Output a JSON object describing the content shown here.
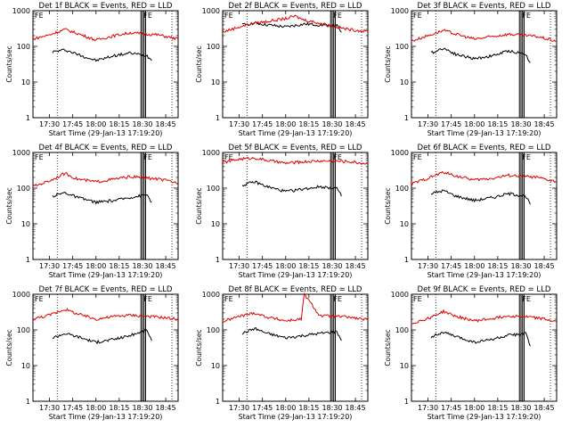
{
  "panels": [
    {
      "title": "Det 1f BLACK = Events, RED = LLD",
      "xlabel": "Start Time (29-Jan-13 17:19:20)",
      "ylabel": "Counts/sec",
      "xticks": [
        "17:30",
        "17:45",
        "18:00",
        "18:15",
        "18:30",
        "18:45"
      ],
      "yticks": [
        "1",
        "10",
        "100",
        "1000"
      ],
      "flag": "FE"
    },
    {
      "title": "Det 2f BLACK = Events, RED = LLD",
      "xlabel": "Start Time (29-Jan-13 17:19:20)",
      "ylabel": "Counts/sec",
      "xticks": [
        "17:30",
        "17:45",
        "18:00",
        "18:15",
        "18:30",
        "18:45"
      ],
      "yticks": [
        "1",
        "10",
        "100",
        "1000"
      ],
      "flag": "FE"
    },
    {
      "title": "Det 3f BLACK = Events, RED = LLD",
      "xlabel": "Start Time (29-Jan-13 17:19:20)",
      "ylabel": "Counts/sec",
      "xticks": [
        "17:30",
        "17:45",
        "18:00",
        "18:15",
        "18:30",
        "18:45"
      ],
      "yticks": [
        "1",
        "10",
        "100",
        "1000"
      ],
      "flag": "FE"
    },
    {
      "title": "Det 4f BLACK = Events, RED = LLD",
      "xlabel": "Start Time (29-Jan-13 17:19:20)",
      "ylabel": "Counts/sec",
      "xticks": [
        "17:30",
        "17:45",
        "18:00",
        "18:15",
        "18:30",
        "18:45"
      ],
      "yticks": [
        "1",
        "10",
        "100",
        "1000"
      ],
      "flag": "FE"
    },
    {
      "title": "Det 5f BLACK = Events, RED = LLD",
      "xlabel": "Start Time (29-Jan-13 17:19:20)",
      "ylabel": "Counts/sec",
      "xticks": [
        "17:30",
        "17:45",
        "18:00",
        "18:15",
        "18:30",
        "18:45"
      ],
      "yticks": [
        "1",
        "10",
        "100",
        "1000"
      ],
      "flag": "FE"
    },
    {
      "title": "Det 6f BLACK = Events, RED = LLD",
      "xlabel": "Start Time (29-Jan-13 17:19:20)",
      "ylabel": "Counts/sec",
      "xticks": [
        "17:30",
        "17:45",
        "18:00",
        "18:15",
        "18:30",
        "18:45"
      ],
      "yticks": [
        "1",
        "10",
        "100",
        "1000"
      ],
      "flag": "FE"
    },
    {
      "title": "Det 7f BLACK = Events, RED = LLD",
      "xlabel": "Start Time (29-Jan-13 17:19:20)",
      "ylabel": "Counts/sec",
      "xticks": [
        "17:30",
        "17:45",
        "18:00",
        "18:15",
        "18:30",
        "18:45"
      ],
      "yticks": [
        "1",
        "10",
        "100",
        "1000"
      ],
      "flag": "FE"
    },
    {
      "title": "Det 8f BLACK = Events, RED = LLD",
      "xlabel": "Start Time (29-Jan-13 17:19:20)",
      "ylabel": "Counts/sec",
      "xticks": [
        "17:30",
        "17:45",
        "18:00",
        "18:15",
        "18:30",
        "18:45"
      ],
      "yticks": [
        "1",
        "10",
        "100",
        "1000"
      ],
      "flag": "FE"
    },
    {
      "title": "Det 9f BLACK = Events, RED = LLD",
      "xlabel": "Start Time (29-Jan-13 17:19:20)",
      "ylabel": "Counts/sec",
      "xticks": [
        "17:30",
        "17:45",
        "18:00",
        "18:15",
        "18:30",
        "18:45"
      ],
      "yticks": [
        "1",
        "10",
        "100",
        "1000"
      ],
      "flag": "FE"
    }
  ],
  "colors": {
    "events": "#000000",
    "lld": "#dd0000",
    "axes": "#000000"
  },
  "chart_data": [
    {
      "type": "line",
      "title": "Det 1f BLACK = Events, RED = LLD",
      "xlabel": "Start Time (29-Jan-13 17:19:20)",
      "ylabel": "Counts/sec",
      "yscale": "log",
      "ylim": [
        1,
        1000
      ],
      "xlim": [
        "17:19",
        "18:53"
      ],
      "grid": false,
      "series": [
        {
          "name": "BLACK = Events",
          "x": [
            "17:32",
            "17:40",
            "17:48",
            "18:00",
            "18:12",
            "18:22",
            "18:33",
            "18:36"
          ],
          "y": [
            70,
            80,
            60,
            40,
            55,
            65,
            55,
            40
          ]
        },
        {
          "name": "RED = LLD",
          "x": [
            "17:19",
            "17:30",
            "17:40",
            "17:48",
            "18:00",
            "18:12",
            "18:22",
            "18:40",
            "18:53"
          ],
          "y": [
            160,
            210,
            300,
            230,
            150,
            200,
            240,
            210,
            160
          ]
        }
      ]
    },
    {
      "type": "line",
      "title": "Det 2f BLACK = Events, RED = LLD",
      "xlabel": "Start Time (29-Jan-13 17:19:20)",
      "ylabel": "Counts/sec",
      "yscale": "log",
      "ylim": [
        1,
        1000
      ],
      "xlim": [
        "17:19",
        "18:53"
      ],
      "grid": false,
      "series": [
        {
          "name": "BLACK = Events",
          "x": [
            "17:32",
            "17:40",
            "17:48",
            "18:00",
            "18:12",
            "18:22",
            "18:33",
            "18:36"
          ],
          "y": [
            400,
            450,
            400,
            350,
            420,
            400,
            380,
            250
          ]
        },
        {
          "name": "RED = LLD",
          "x": [
            "17:19",
            "17:30",
            "17:40",
            "17:48",
            "18:00",
            "18:06",
            "18:12",
            "18:22",
            "18:40",
            "18:53"
          ],
          "y": [
            250,
            350,
            450,
            500,
            600,
            700,
            550,
            450,
            300,
            260
          ]
        }
      ]
    },
    {
      "type": "line",
      "title": "Det 3f BLACK = Events, RED = LLD",
      "xlabel": "Start Time (29-Jan-13 17:19:20)",
      "ylabel": "Counts/sec",
      "yscale": "log",
      "ylim": [
        1,
        1000
      ],
      "xlim": [
        "17:19",
        "18:53"
      ],
      "grid": false,
      "series": [
        {
          "name": "BLACK = Events",
          "x": [
            "17:32",
            "17:40",
            "17:48",
            "18:00",
            "18:12",
            "18:22",
            "18:33",
            "18:36"
          ],
          "y": [
            65,
            90,
            60,
            45,
            55,
            75,
            60,
            35
          ]
        },
        {
          "name": "RED = LLD",
          "x": [
            "17:19",
            "17:30",
            "17:40",
            "17:48",
            "18:00",
            "18:12",
            "18:22",
            "18:40",
            "18:53"
          ],
          "y": [
            140,
            200,
            280,
            220,
            160,
            190,
            220,
            190,
            140
          ]
        }
      ]
    },
    {
      "type": "line",
      "title": "Det 4f BLACK = Events, RED = LLD",
      "xlabel": "Start Time (29-Jan-13 17:19:20)",
      "ylabel": "Counts/sec",
      "yscale": "log",
      "ylim": [
        1,
        1000
      ],
      "xlim": [
        "17:19",
        "18:53"
      ],
      "grid": false,
      "series": [
        {
          "name": "BLACK = Events",
          "x": [
            "17:32",
            "17:40",
            "17:48",
            "18:00",
            "18:12",
            "18:22",
            "18:33",
            "18:36"
          ],
          "y": [
            60,
            75,
            55,
            40,
            45,
            55,
            65,
            40
          ]
        },
        {
          "name": "RED = LLD",
          "x": [
            "17:19",
            "17:30",
            "17:40",
            "17:48",
            "18:00",
            "18:12",
            "18:22",
            "18:40",
            "18:53"
          ],
          "y": [
            110,
            160,
            260,
            180,
            150,
            180,
            210,
            180,
            140
          ]
        }
      ]
    },
    {
      "type": "line",
      "title": "Det 5f BLACK = Events, RED = LLD",
      "xlabel": "Start Time (29-Jan-13 17:19:20)",
      "ylabel": "Counts/sec",
      "yscale": "log",
      "ylim": [
        1,
        1000
      ],
      "xlim": [
        "17:19",
        "18:53"
      ],
      "grid": false,
      "series": [
        {
          "name": "BLACK = Events",
          "x": [
            "17:32",
            "17:40",
            "17:48",
            "18:00",
            "18:12",
            "18:22",
            "18:33",
            "18:36"
          ],
          "y": [
            120,
            150,
            110,
            80,
            95,
            110,
            100,
            60
          ]
        },
        {
          "name": "RED = LLD",
          "x": [
            "17:19",
            "17:30",
            "17:40",
            "17:48",
            "18:00",
            "18:12",
            "18:22",
            "18:40",
            "18:53"
          ],
          "y": [
            520,
            650,
            700,
            600,
            500,
            550,
            580,
            560,
            480
          ]
        }
      ]
    },
    {
      "type": "line",
      "title": "Det 6f BLACK = Events, RED = LLD",
      "xlabel": "Start Time (29-Jan-13 17:19:20)",
      "ylabel": "Counts/sec",
      "yscale": "log",
      "ylim": [
        1,
        1000
      ],
      "xlim": [
        "17:19",
        "18:53"
      ],
      "grid": false,
      "series": [
        {
          "name": "BLACK = Events",
          "x": [
            "17:32",
            "17:40",
            "17:48",
            "18:00",
            "18:12",
            "18:22",
            "18:33",
            "18:36"
          ],
          "y": [
            70,
            85,
            60,
            45,
            55,
            70,
            60,
            35
          ]
        },
        {
          "name": "RED = LLD",
          "x": [
            "17:19",
            "17:30",
            "17:40",
            "17:48",
            "18:00",
            "18:12",
            "18:22",
            "18:40",
            "18:53"
          ],
          "y": [
            130,
            190,
            280,
            220,
            170,
            190,
            230,
            200,
            150
          ]
        }
      ]
    },
    {
      "type": "line",
      "title": "Det 7f BLACK = Events, RED = LLD",
      "xlabel": "Start Time (29-Jan-13 17:19:20)",
      "ylabel": "Counts/sec",
      "yscale": "log",
      "ylim": [
        1,
        1000
      ],
      "xlim": [
        "17:19",
        "18:53"
      ],
      "grid": false,
      "series": [
        {
          "name": "BLACK = Events",
          "x": [
            "17:32",
            "17:40",
            "17:48",
            "18:00",
            "18:12",
            "18:22",
            "18:33",
            "18:36"
          ],
          "y": [
            60,
            80,
            65,
            45,
            55,
            70,
            100,
            50
          ]
        },
        {
          "name": "RED = LLD",
          "x": [
            "17:19",
            "17:30",
            "17:40",
            "17:48",
            "18:00",
            "18:12",
            "18:22",
            "18:40",
            "18:53"
          ],
          "y": [
            200,
            260,
            380,
            280,
            200,
            240,
            260,
            230,
            200
          ]
        }
      ]
    },
    {
      "type": "line",
      "title": "Det 8f BLACK = Events, RED = LLD",
      "xlabel": "Start Time (29-Jan-13 17:19:20)",
      "ylabel": "Counts/sec",
      "yscale": "log",
      "ylim": [
        1,
        1000
      ],
      "xlim": [
        "17:19",
        "18:53"
      ],
      "grid": false,
      "series": [
        {
          "name": "BLACK = Events",
          "x": [
            "17:32",
            "17:40",
            "17:48",
            "18:00",
            "18:12",
            "18:22",
            "18:33",
            "18:36"
          ],
          "y": [
            80,
            110,
            80,
            60,
            70,
            80,
            90,
            50
          ]
        },
        {
          "name": "RED = LLD",
          "x": [
            "17:19",
            "17:30",
            "17:40",
            "17:48",
            "18:00",
            "18:10",
            "18:12",
            "18:22",
            "18:40",
            "18:53"
          ],
          "y": [
            170,
            240,
            300,
            230,
            180,
            200,
            1000,
            250,
            230,
            190
          ]
        }
      ]
    },
    {
      "type": "line",
      "title": "Det 9f BLACK = Events, RED = LLD",
      "xlabel": "Start Time (29-Jan-13 17:19:20)",
      "ylabel": "Counts/sec",
      "yscale": "log",
      "ylim": [
        1,
        1000
      ],
      "xlim": [
        "17:19",
        "18:53"
      ],
      "grid": false,
      "series": [
        {
          "name": "BLACK = Events",
          "x": [
            "17:32",
            "17:40",
            "17:48",
            "18:00",
            "18:12",
            "18:22",
            "18:33",
            "18:36"
          ],
          "y": [
            65,
            85,
            65,
            45,
            55,
            70,
            80,
            35
          ]
        },
        {
          "name": "RED = LLD",
          "x": [
            "17:19",
            "17:30",
            "17:40",
            "17:48",
            "18:00",
            "18:12",
            "18:22",
            "18:40",
            "18:53"
          ],
          "y": [
            150,
            210,
            330,
            240,
            180,
            210,
            250,
            220,
            170
          ]
        }
      ]
    }
  ]
}
